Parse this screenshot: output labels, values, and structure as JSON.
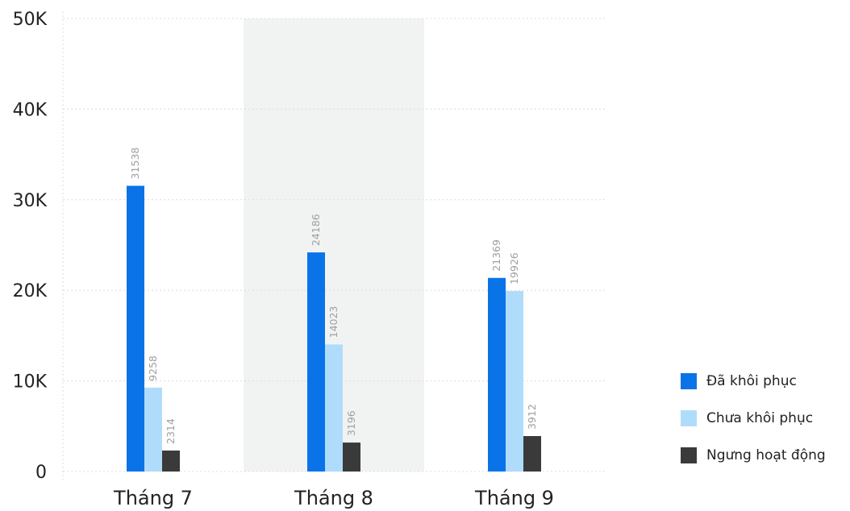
{
  "chart_data": {
    "type": "bar",
    "categories": [
      "Tháng 7",
      "Tháng 8",
      "Tháng 9"
    ],
    "series": [
      {
        "name": "Đã khôi phục",
        "values": [
          31538,
          24186,
          21369
        ],
        "color": "#0a73e8"
      },
      {
        "name": "Chưa khôi phục",
        "values": [
          9258,
          14023,
          19926
        ],
        "color": "#b0dcfb"
      },
      {
        "name": "Ngưng hoạt động",
        "values": [
          2314,
          3196,
          3912
        ],
        "color": "#3a3a3a"
      }
    ],
    "ylim": [
      0,
      50000
    ],
    "yticks": [
      0,
      10000,
      20000,
      30000,
      40000,
      50000
    ],
    "ytick_labels": [
      "0",
      "10K",
      "20K",
      "30K",
      "40K",
      "50K"
    ],
    "highlighted_category": "Tháng 8",
    "highlight_color": "#f1f3f2",
    "grid": true,
    "legend_position": "right",
    "data_labels": "rotated, above bars"
  }
}
